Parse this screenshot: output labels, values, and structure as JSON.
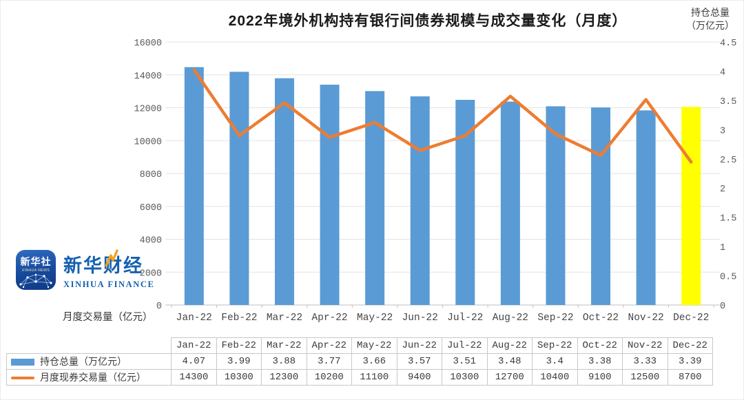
{
  "page": {
    "title": "2022年境外机构持有银行间债券规模与成交量变化（月度）"
  },
  "axes": {
    "right_title_line1": "持仓总量",
    "right_title_line2": "（万亿元）",
    "left_bottom_title": "月度交易量（亿元）",
    "left_ticks": [
      "0",
      "2000",
      "4000",
      "6000",
      "8000",
      "10000",
      "12000",
      "14000",
      "16000"
    ],
    "right_ticks": [
      "0",
      "0.5",
      "1",
      "1.5",
      "2",
      "2.5",
      "3",
      "3.5",
      "4",
      "4.5"
    ]
  },
  "chart_data": {
    "type": "combo-bar-line",
    "title": "2022年境外机构持有银行间债券规模与成交量变化（月度）",
    "categories": [
      "Jan-22",
      "Feb-22",
      "Mar-22",
      "Apr-22",
      "May-22",
      "Jun-22",
      "Jul-22",
      "Aug-22",
      "Sep-22",
      "Oct-22",
      "Nov-22",
      "Dec-22"
    ],
    "series": [
      {
        "name": "持仓总量（万亿元）",
        "type": "bar",
        "axis": "right",
        "color": "#5B9BD5",
        "highlight_index": 11,
        "highlight_color": "#FFFF00",
        "values": [
          4.07,
          3.99,
          3.88,
          3.77,
          3.66,
          3.57,
          3.51,
          3.48,
          3.4,
          3.38,
          3.33,
          3.39
        ]
      },
      {
        "name": "月度现券交易量（亿元）",
        "type": "line",
        "axis": "left",
        "color": "#ED7D31",
        "values": [
          14300,
          10300,
          12300,
          10200,
          11100,
          9400,
          10300,
          12700,
          10400,
          9100,
          12500,
          8700
        ]
      }
    ],
    "left_axis": {
      "label": "月度交易量（亿元）",
      "min": 0,
      "max": 16000,
      "step": 2000
    },
    "right_axis": {
      "label": "持仓总量（万亿元）",
      "min": 0,
      "max": 4.5,
      "step": 0.5
    },
    "grid": true,
    "legend_position": "bottom-table"
  },
  "table": {
    "columns": [
      "Jan-22",
      "Feb-22",
      "Mar-22",
      "Apr-22",
      "May-22",
      "Jun-22",
      "Jul-22",
      "Aug-22",
      "Sep-22",
      "Oct-22",
      "Nov-22",
      "Dec-22"
    ],
    "rows": [
      {
        "label": "持仓总量（万亿元）",
        "swatch": "bar",
        "values": [
          "4.07",
          "3.99",
          "3.88",
          "3.77",
          "3.66",
          "3.57",
          "3.51",
          "3.48",
          "3.4",
          "3.38",
          "3.33",
          "3.39"
        ]
      },
      {
        "label": "月度现券交易量（亿元）",
        "swatch": "line",
        "values": [
          "14300",
          "10300",
          "12300",
          "10200",
          "11100",
          "9400",
          "10300",
          "12700",
          "10400",
          "9100",
          "12500",
          "8700"
        ]
      }
    ]
  },
  "logo": {
    "icon_title": "新华社",
    "icon_subtitle": "XINHUA NEWS",
    "brand": "新华财经",
    "brand_en": "XINHUA FINANCE"
  },
  "colors": {
    "bar": "#5B9BD5",
    "bar_highlight": "#FFFF00",
    "line": "#ED7D31",
    "grid": "#E3E3E3",
    "axis": "#BFBFBF",
    "tick_text": "#595959",
    "month_text": "#454545",
    "table_border": "#C8C8C8",
    "brand_blue": "#1560AE",
    "bolt_orange": "#F6A21C"
  }
}
